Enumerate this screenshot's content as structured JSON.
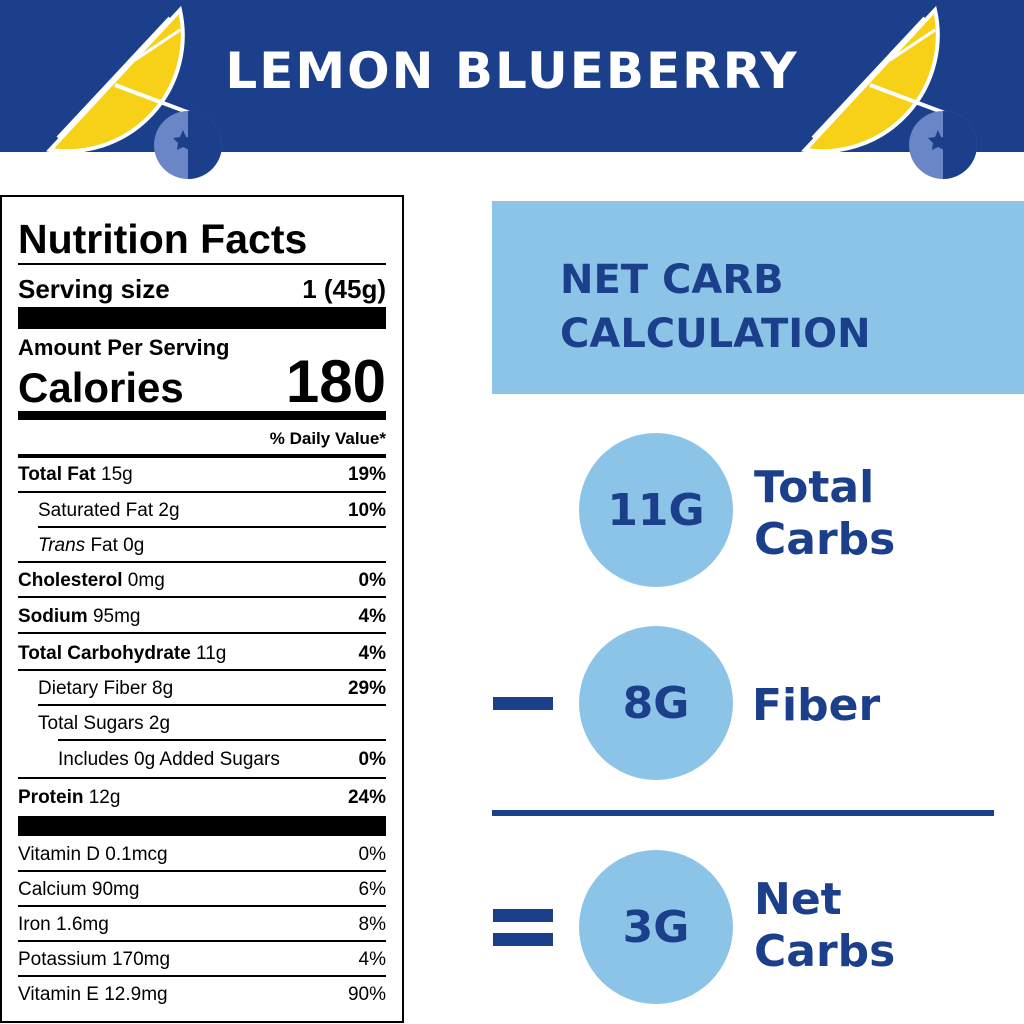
{
  "header": {
    "title": "LEMON BLUEBERRY"
  },
  "colors": {
    "navy": "#1c3f8c",
    "light_blue": "#8cc4e8",
    "lemon": "#f7d117",
    "blueberry": "#6b86c7"
  },
  "nutrition": {
    "title": "Nutrition Facts",
    "serving_label": "Serving size",
    "serving_value": "1 (45g)",
    "amount_per_serving": "Amount Per Serving",
    "calories_label": "Calories",
    "calories_value": "180",
    "daily_value_header": "% Daily Value*",
    "nutrients": [
      {
        "bold": "Total Fat",
        "amount": " 15g",
        "pct": "19%"
      },
      {
        "plain": "Saturated Fat 2g",
        "pct": "10%"
      },
      {
        "italic": "Trans",
        "amount": " Fat 0g"
      },
      {
        "bold": "Cholesterol",
        "amount": " 0mg",
        "pct": "0%"
      },
      {
        "bold": "Sodium",
        "amount": " 95mg",
        "pct": "4%"
      },
      {
        "bold": "Total Carbohydrate",
        "amount": " 11g",
        "pct": "4%"
      },
      {
        "plain": "Dietary Fiber 8g",
        "pct": "29%"
      },
      {
        "plain": "Total Sugars 2g"
      },
      {
        "plain": "Includes 0g Added Sugars",
        "pct": "0%"
      },
      {
        "bold": "Protein",
        "amount": " 12g",
        "pct": "24%"
      }
    ],
    "vitamins": [
      {
        "label": "Vitamin D 0.1mcg",
        "pct": "0%"
      },
      {
        "label": "Calcium 90mg",
        "pct": "6%"
      },
      {
        "label": "Iron 1.6mg",
        "pct": "8%"
      },
      {
        "label": "Potassium 170mg",
        "pct": "4%"
      },
      {
        "label": "Vitamin E 12.9mg",
        "pct": "90%"
      }
    ]
  },
  "net_carb": {
    "title_line1": "NET CARB",
    "title_line2": "CALCULATION",
    "total": {
      "value": "11G",
      "label1": "Total",
      "label2": "Carbs"
    },
    "fiber": {
      "value": "8G",
      "label1": "Fiber"
    },
    "net": {
      "value": "3G",
      "label1": "Net",
      "label2": "Carbs"
    }
  }
}
